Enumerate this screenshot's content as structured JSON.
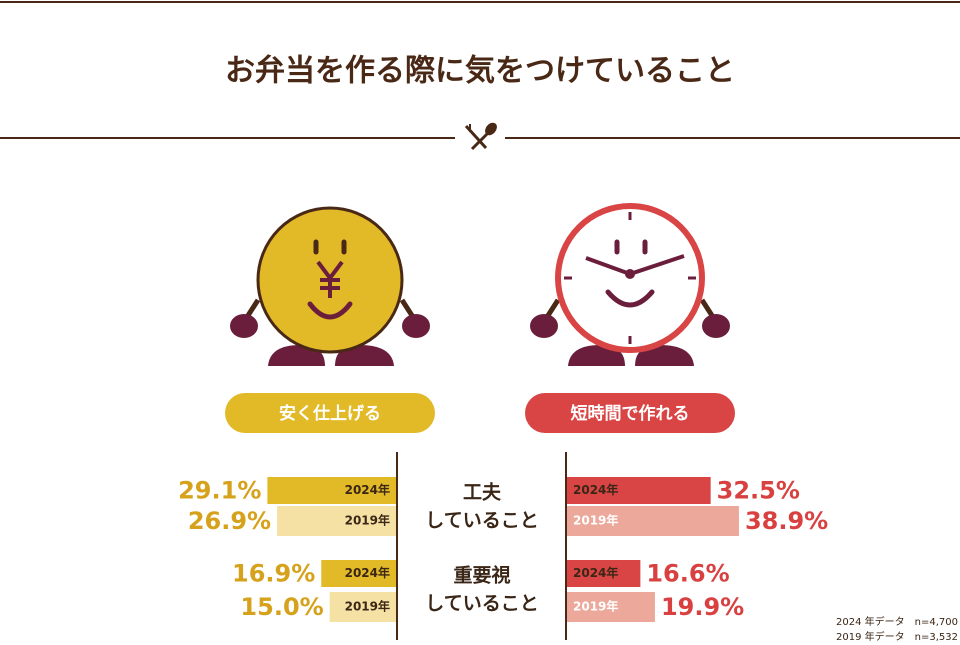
{
  "title": "お弁当を作る際に気をつけていること",
  "chart_data": {
    "type": "butterfly",
    "categories": [
      [
        "工夫",
        "していること"
      ],
      [
        "重要視",
        "していること"
      ]
    ],
    "panels": [
      {
        "title": "安く仕上げる",
        "color": "#e2b927",
        "side": "left",
        "value_color": "#d6a21b",
        "series": [
          {
            "name": "2024年",
            "color": "#e2b927",
            "values": [
              29.1,
              16.9
            ],
            "value_labels": [
              "29.1%",
              "16.9%"
            ]
          },
          {
            "name": "2019年",
            "color": "#f4e1a3",
            "values": [
              26.9,
              15.0
            ],
            "value_labels": [
              "26.9%",
              "15.0%"
            ]
          }
        ]
      },
      {
        "title": "短時間で作れる",
        "color": "#d94545",
        "side": "right",
        "value_color": "#d94040",
        "series": [
          {
            "name": "2024年",
            "color": "#d94545",
            "values": [
              32.5,
              16.6
            ],
            "value_labels": [
              "32.5%",
              "16.6%"
            ]
          },
          {
            "name": "2019年",
            "color": "#eca99b",
            "values": [
              38.9,
              19.9
            ],
            "value_labels": [
              "38.9%",
              "19.9%"
            ]
          }
        ]
      }
    ],
    "notes": [
      "2024 年データ　n=4,700",
      "2019 年データ　n=3,532"
    ]
  }
}
